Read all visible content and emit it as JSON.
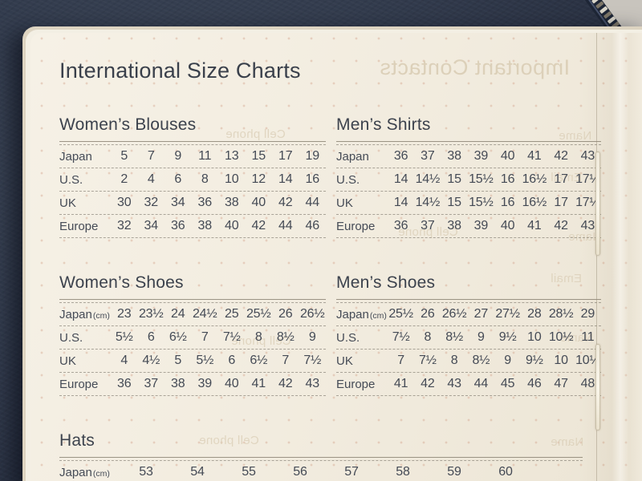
{
  "title": "International Size Charts",
  "sections": [
    {
      "id": "womens-blouses",
      "title": "Women’s Blouses",
      "rows": [
        {
          "label": "Japan",
          "unit": "",
          "values": [
            "5",
            "7",
            "9",
            "11",
            "13",
            "15",
            "17",
            "19"
          ]
        },
        {
          "label": "U.S.",
          "unit": "",
          "values": [
            "2",
            "4",
            "6",
            "8",
            "10",
            "12",
            "14",
            "16"
          ]
        },
        {
          "label": "UK",
          "unit": "",
          "values": [
            "30",
            "32",
            "34",
            "36",
            "38",
            "40",
            "42",
            "44"
          ]
        },
        {
          "label": "Europe",
          "unit": "",
          "values": [
            "32",
            "34",
            "36",
            "38",
            "40",
            "42",
            "44",
            "46"
          ]
        }
      ]
    },
    {
      "id": "mens-shirts",
      "title": "Men’s Shirts",
      "rows": [
        {
          "label": "Japan",
          "unit": "",
          "values": [
            "36",
            "37",
            "38",
            "39",
            "40",
            "41",
            "42",
            "43"
          ]
        },
        {
          "label": "U.S.",
          "unit": "",
          "values": [
            "14",
            "14½",
            "15",
            "15½",
            "16",
            "16½",
            "17",
            "17½"
          ]
        },
        {
          "label": "UK",
          "unit": "",
          "values": [
            "14",
            "14½",
            "15",
            "15½",
            "16",
            "16½",
            "17",
            "17½"
          ]
        },
        {
          "label": "Europe",
          "unit": "",
          "values": [
            "36",
            "37",
            "38",
            "39",
            "40",
            "41",
            "42",
            "43"
          ]
        }
      ]
    },
    {
      "id": "womens-shoes",
      "title": "Women’s Shoes",
      "rows": [
        {
          "label": "Japan",
          "unit": "(cm)",
          "values": [
            "23",
            "23½",
            "24",
            "24½",
            "25",
            "25½",
            "26",
            "26½"
          ]
        },
        {
          "label": "U.S.",
          "unit": "",
          "values": [
            "5½",
            "6",
            "6½",
            "7",
            "7½",
            "8",
            "8½",
            "9"
          ]
        },
        {
          "label": "UK",
          "unit": "",
          "values": [
            "4",
            "4½",
            "5",
            "5½",
            "6",
            "6½",
            "7",
            "7½"
          ]
        },
        {
          "label": "Europe",
          "unit": "",
          "values": [
            "36",
            "37",
            "38",
            "39",
            "40",
            "41",
            "42",
            "43"
          ]
        }
      ]
    },
    {
      "id": "mens-shoes",
      "title": "Men’s Shoes",
      "rows": [
        {
          "label": "Japan",
          "unit": "(cm)",
          "values": [
            "25½",
            "26",
            "26½",
            "27",
            "27½",
            "28",
            "28½",
            "29"
          ]
        },
        {
          "label": "U.S.",
          "unit": "",
          "values": [
            "7½",
            "8",
            "8½",
            "9",
            "9½",
            "10",
            "10½",
            "11"
          ]
        },
        {
          "label": "UK",
          "unit": "",
          "values": [
            "7",
            "7½",
            "8",
            "8½",
            "9",
            "9½",
            "10",
            "10½"
          ]
        },
        {
          "label": "Europe",
          "unit": "",
          "values": [
            "41",
            "42",
            "43",
            "44",
            "45",
            "46",
            "47",
            "48"
          ]
        }
      ]
    },
    {
      "id": "hats",
      "title": "Hats",
      "rows": [
        {
          "label": "Japan",
          "unit": "(cm)",
          "values": [
            "53",
            "54",
            "55",
            "56",
            "57",
            "58",
            "59",
            "60"
          ]
        }
      ]
    }
  ],
  "ghost_texts": {
    "heading": "Important Contacts",
    "cell_phone": "Cell phone",
    "name": "Name",
    "email": "Email"
  },
  "colors": {
    "paper": "#f2ecdf",
    "ink": "#424853",
    "cover_navy": "#2c3444",
    "ghost": "#dcd0b9"
  }
}
